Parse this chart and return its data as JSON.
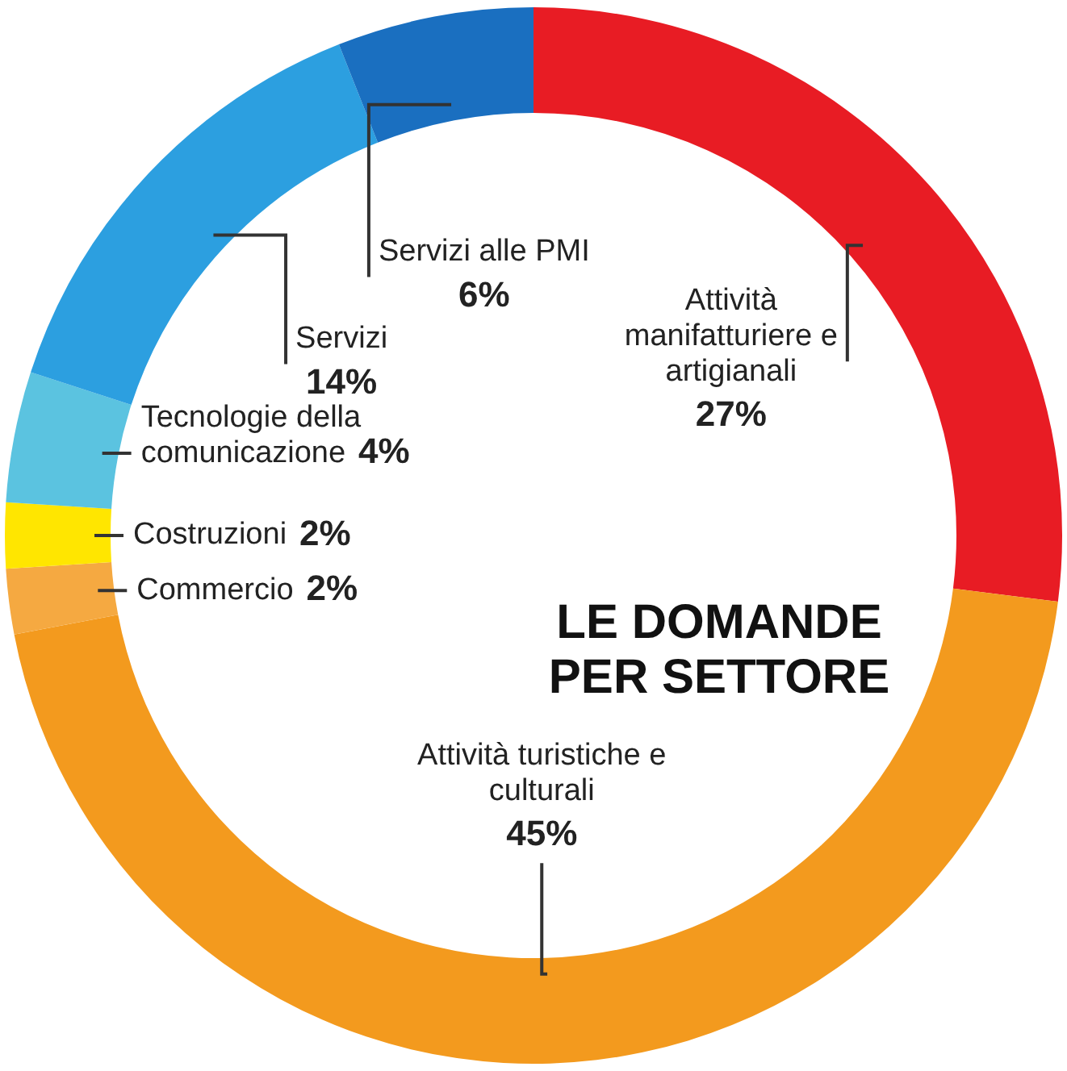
{
  "chart_data": {
    "type": "donut",
    "title": "LE DOMANDE PER SETTORE",
    "categories": [
      "Attività manifatturiere e artigianali",
      "Attività turistiche e culturali",
      "Commercio",
      "Costruzioni",
      "Tecnologie della comunicazione",
      "Servizi",
      "Servizi alle PMI"
    ],
    "values": [
      27,
      45,
      2,
      2,
      4,
      14,
      6
    ],
    "colors": [
      "#e81c24",
      "#f39a1e",
      "#f5a941",
      "#ffe600",
      "#5bc3e0",
      "#2c9fe0",
      "#1a6fc0"
    ],
    "value_labels": [
      "27%",
      "45%",
      "2%",
      "2%",
      "4%",
      "14%",
      "6%"
    ],
    "legend": false
  }
}
